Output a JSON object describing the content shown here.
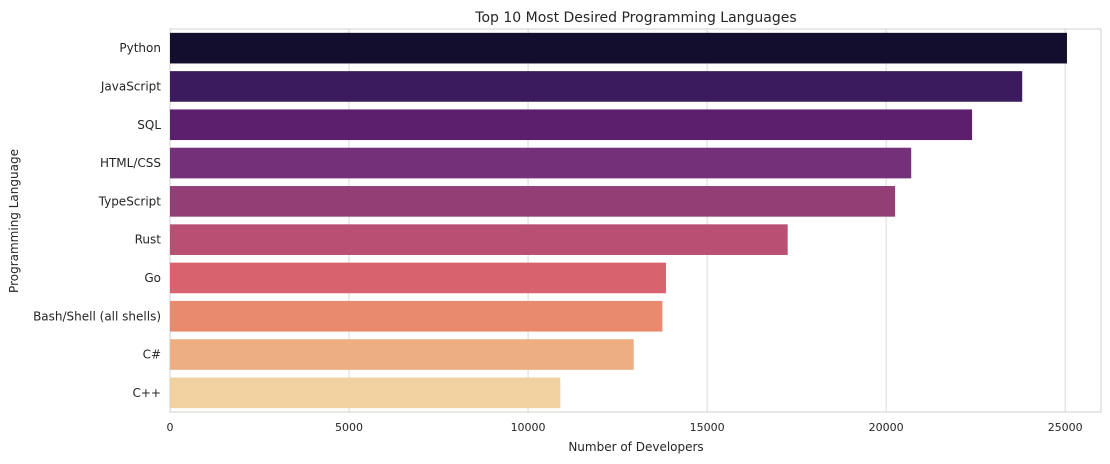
{
  "chart_data": {
    "type": "bar",
    "orientation": "horizontal",
    "title": "Top 10 Most Desired Programming Languages",
    "xlabel": "Number of Developers",
    "ylabel": "Programming Language",
    "xlim": [
      0,
      26000
    ],
    "xticks": [
      0,
      5000,
      10000,
      15000,
      20000,
      25000
    ],
    "grid": true,
    "categories": [
      "Python",
      "JavaScript",
      "SQL",
      "HTML/CSS",
      "TypeScript",
      "Rust",
      "Go",
      "Bash/Shell (all shells)",
      "C#",
      "C++"
    ],
    "values": [
      25050,
      23800,
      22400,
      20700,
      20250,
      17250,
      13850,
      13750,
      12950,
      10900
    ],
    "colors": [
      "#140e2e",
      "#3b1b5e",
      "#5b1f6e",
      "#75307a",
      "#933f76",
      "#b94f73",
      "#d8636e",
      "#e9896e",
      "#edaf82",
      "#f2d1a0"
    ]
  }
}
